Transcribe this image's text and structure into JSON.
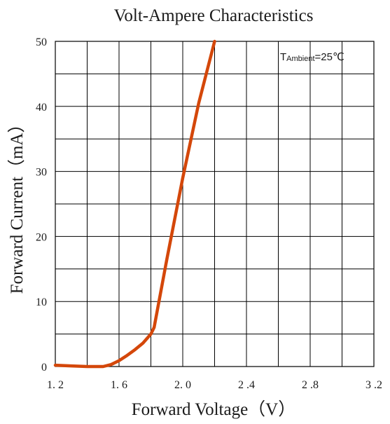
{
  "chart_data": {
    "type": "line",
    "title": "Volt-Ampere Characteristics",
    "xlabel": "Forward Voltage（V）",
    "ylabel": "Forward Current（mA）",
    "xlim": [
      1.2,
      3.2
    ],
    "ylim": [
      0,
      50
    ],
    "x_ticks": [
      1.2,
      1.6,
      2.0,
      2.4,
      2.8,
      3.2
    ],
    "x_tick_labels": [
      "1. 2",
      "1. 6",
      "2. 0",
      "2 .4",
      "2 .8",
      "3 .2"
    ],
    "y_ticks": [
      0,
      10,
      20,
      30,
      40,
      50
    ],
    "y_tick_labels": [
      "0",
      "10",
      "20",
      "30",
      "40",
      "50"
    ],
    "grid": true,
    "annotation": {
      "prefix": "T",
      "sub": "Ambient",
      "suffix": "=25℃"
    },
    "series": [
      {
        "color": "#d4470a",
        "x": [
          1.2,
          1.3,
          1.4,
          1.5,
          1.55,
          1.6,
          1.65,
          1.7,
          1.75,
          1.8,
          1.82,
          1.9,
          2.0,
          2.1,
          2.2
        ],
        "y": [
          0.2,
          0.1,
          0.0,
          0.0,
          0.3,
          0.9,
          1.7,
          2.6,
          3.6,
          5.0,
          6.0,
          16.5,
          29.0,
          40.5,
          50.0
        ]
      }
    ]
  }
}
